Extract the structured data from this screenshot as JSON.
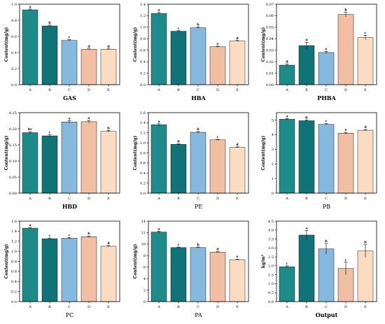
{
  "colors": {
    "A": "#1f8a8a",
    "B": "#0f7377",
    "C": "#86b9dd",
    "D": "#f2bea4",
    "E": "#fbdcc3"
  },
  "chart_data": [
    {
      "type": "bar",
      "title": "GAS",
      "title_bold": true,
      "ylabel": "Content(mg/g)",
      "categories": [
        "A",
        "B",
        "C",
        "D",
        "E"
      ],
      "values": [
        0.93,
        0.73,
        0.55,
        0.44,
        0.44
      ],
      "errors": [
        0.01,
        0.01,
        0.01,
        0.005,
        0.005
      ],
      "labels": [
        "a",
        "b",
        "c",
        "d",
        "d"
      ],
      "ylim": [
        0,
        1.0
      ],
      "yticks": [
        "0.0",
        "0.2",
        "0.4",
        "0.6",
        "0.8",
        "1.0"
      ]
    },
    {
      "type": "bar",
      "title": "HBA",
      "title_bold": true,
      "ylabel": "Content(mg/g)",
      "categories": [
        "A",
        "B",
        "C",
        "D",
        "E"
      ],
      "values": [
        1.24,
        0.93,
        0.99,
        0.66,
        0.76
      ],
      "errors": [
        0.02,
        0.01,
        0.015,
        0.01,
        0.01
      ],
      "labels": [
        "a",
        "c",
        "b",
        "e",
        "d"
      ],
      "ylim": [
        0,
        1.4
      ],
      "yticks": [
        "0.0",
        "0.2",
        "0.4",
        "0.6",
        "0.8",
        "1.0",
        "1.2",
        "1.4"
      ]
    },
    {
      "type": "bar",
      "title": "PHBA",
      "title_bold": true,
      "ylabel": "Content(mg/g)",
      "categories": [
        "A",
        "B",
        "C",
        "D",
        "E"
      ],
      "values": [
        0.017,
        0.034,
        0.028,
        0.061,
        0.041
      ],
      "errors": [
        0.001,
        0.003,
        0.001,
        0.002,
        0.002
      ],
      "labels": [
        "d",
        "a",
        "e",
        "b",
        "c"
      ],
      "ylim": [
        0,
        0.07
      ],
      "yticks": [
        "0.00",
        "0.01",
        "0.02",
        "0.03",
        "0.04",
        "0.05",
        "0.06",
        "0.07"
      ]
    },
    {
      "type": "bar",
      "title": "HBD",
      "title_bold": true,
      "ylabel": "Content(mg/g)",
      "categories": [
        "A",
        "B",
        "C",
        "D",
        "E"
      ],
      "values": [
        0.188,
        0.178,
        0.221,
        0.222,
        0.192
      ],
      "errors": [
        0.003,
        0.004,
        0.004,
        0.004,
        0.003
      ],
      "labels": [
        "bc",
        "c",
        "a",
        "a",
        "b"
      ],
      "ylim": [
        0,
        0.25
      ],
      "yticks": [
        "0.00",
        "0.05",
        "0.10",
        "0.15",
        "0.20",
        "0.25"
      ]
    },
    {
      "type": "bar",
      "title": "PE",
      "title_bold": false,
      "ylabel": "Content(mg/g)",
      "categories": [
        "A",
        "B",
        "C",
        "D",
        "E"
      ],
      "values": [
        1.36,
        0.97,
        1.21,
        1.06,
        0.91
      ],
      "errors": [
        0.02,
        0.01,
        0.015,
        0.01,
        0.01
      ],
      "labels": [
        "a",
        "d",
        "b",
        "c",
        "d"
      ],
      "ylim": [
        0,
        1.6
      ],
      "yticks": [
        "0.0",
        "0.2",
        "0.4",
        "0.6",
        "0.8",
        "1.0",
        "1.2",
        "1.4",
        "1.6"
      ]
    },
    {
      "type": "bar",
      "title": "PB",
      "title_bold": false,
      "ylabel": "Content(mg/g)",
      "categories": [
        "A",
        "B",
        "C",
        "D",
        "E"
      ],
      "values": [
        5.05,
        4.95,
        4.7,
        4.1,
        4.3
      ],
      "errors": [
        0.05,
        0.05,
        0.05,
        0.05,
        0.05
      ],
      "labels": [
        "a",
        "b",
        "c",
        "e",
        "d"
      ],
      "ylim": [
        0,
        5.5
      ],
      "yticks": [
        "0",
        "1",
        "2",
        "3",
        "4",
        "5"
      ]
    },
    {
      "type": "bar",
      "title": "PC",
      "title_bold": false,
      "ylabel": "Content(mg/g)",
      "categories": [
        "A",
        "B",
        "C",
        "D",
        "E"
      ],
      "values": [
        1.46,
        1.25,
        1.26,
        1.29,
        1.1
      ],
      "errors": [
        0.015,
        0.015,
        0.015,
        0.015,
        0.015
      ],
      "labels": [
        "a",
        "c",
        "c",
        "b",
        "d"
      ],
      "ylim": [
        0,
        1.6
      ],
      "yticks": [
        "0.0",
        "0.2",
        "0.4",
        "0.6",
        "0.8",
        "1.0",
        "1.2",
        "1.4",
        "1.6"
      ]
    },
    {
      "type": "bar",
      "title": "PA",
      "title_bold": false,
      "ylabel": "Content(mg/g)",
      "categories": [
        "A",
        "B",
        "C",
        "D",
        "E"
      ],
      "values": [
        12.1,
        9.4,
        9.4,
        8.6,
        7.3
      ],
      "errors": [
        0.15,
        0.1,
        0.1,
        0.1,
        0.1
      ],
      "labels": [
        "a",
        "c",
        "b",
        "d",
        "e"
      ],
      "ylim": [
        0,
        14
      ],
      "yticks": [
        "0",
        "2",
        "4",
        "6",
        "8",
        "10",
        "12",
        "14"
      ]
    },
    {
      "type": "bar",
      "title": "Output",
      "title_bold": true,
      "ylabel": "kg/m²",
      "categories": [
        "A",
        "B",
        "C",
        "D",
        "E"
      ],
      "values": [
        1.95,
        3.72,
        2.95,
        1.85,
        2.83
      ],
      "errors": [
        0.05,
        0.25,
        0.3,
        0.35,
        0.35
      ],
      "labels": [
        "c",
        "a",
        "b",
        "c",
        "b"
      ],
      "ylim": [
        0,
        4.5
      ],
      "yticks": [
        "0.0",
        "0.5",
        "1.0",
        "1.5",
        "2.0",
        "2.5",
        "3.0",
        "3.5",
        "4.0",
        "4.5"
      ]
    }
  ]
}
